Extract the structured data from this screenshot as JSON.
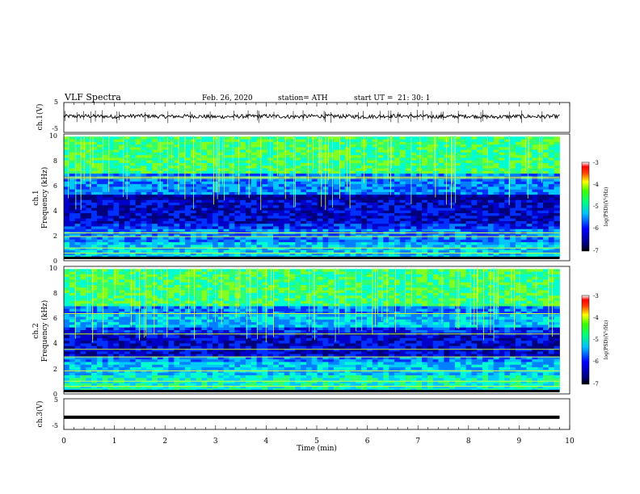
{
  "header": {
    "title": "VLF Spectra",
    "date": "Feb. 26, 2020",
    "station": "station= ATH",
    "start": "start UT =",
    "start_time": "21: 30: 1"
  },
  "colors": {
    "spectral_scale": [
      "#00007f",
      "#0000ff",
      "#00a0ff",
      "#00ffff",
      "#40ff80",
      "#00ff00",
      "#ffff00",
      "#ff8000",
      "#ff0000",
      "#ffffff"
    ],
    "trace": "#000000",
    "background": "#ffffff"
  },
  "chart_data": [
    {
      "type": "line",
      "panel": "ch1-time-series",
      "ylabel": "ch.1(V)",
      "ylim": [
        -5,
        5
      ],
      "yticks": [
        "5",
        "-5"
      ],
      "x": [
        0,
        0.5,
        1,
        1.5,
        2,
        2.5,
        3,
        3.5,
        4,
        4.5,
        5,
        5.5,
        6,
        6.5,
        7,
        7.5,
        8,
        8.5,
        9,
        9.5,
        9.8
      ],
      "values": [
        0.4,
        0.5,
        0.3,
        0.6,
        0.3,
        0.5,
        0.2,
        0.4,
        0.5,
        0.3,
        0.5,
        0.4,
        0.3,
        0.6,
        0.4,
        0.3,
        0.5,
        0.2,
        0.4,
        0.3,
        0.4
      ],
      "xlim": [
        0,
        10
      ]
    },
    {
      "type": "heatmap",
      "panel": "ch1-spectrogram",
      "channel_label": "ch.1",
      "ylabel": "Frequency (kHz)",
      "ylim": [
        0,
        10
      ],
      "yticks": [
        "0",
        "2",
        "4",
        "6",
        "8",
        "10"
      ],
      "xlim": [
        0,
        10
      ],
      "colorbar": {
        "label": "log(PSD)(V²/Hz)",
        "range": [
          -7,
          -3
        ],
        "ticks": [
          "-3",
          "-4",
          "-5",
          "-6",
          "-7"
        ]
      }
    },
    {
      "type": "heatmap",
      "panel": "ch2-spectrogram",
      "channel_label": "ch.2",
      "ylabel": "Frequency (kHz)",
      "ylim": [
        0,
        10
      ],
      "yticks": [
        "0",
        "2",
        "4",
        "6",
        "8",
        "10"
      ],
      "xlim": [
        0,
        10
      ],
      "colorbar": {
        "label": "log(PSD)(V²/Hz)",
        "range": [
          -7,
          -3
        ],
        "ticks": [
          "-3",
          "-4",
          "-5",
          "-6",
          "-7"
        ]
      }
    },
    {
      "type": "line",
      "panel": "ch3-time-series",
      "ylabel": "ch.3(V)",
      "ylim": [
        -5,
        5
      ],
      "yticks": [
        "5",
        "-5"
      ],
      "x": [
        0,
        9.8
      ],
      "values": [
        -1.2,
        -1.2
      ],
      "xlim": [
        0,
        10
      ]
    }
  ],
  "xaxis": {
    "label": "Time (min)",
    "ticks": [
      "0",
      "1",
      "2",
      "3",
      "4",
      "5",
      "6",
      "7",
      "8",
      "9",
      "10"
    ]
  }
}
